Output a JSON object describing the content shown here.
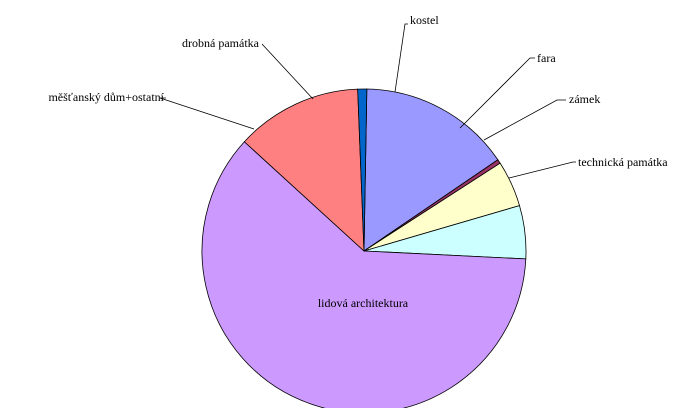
{
  "chart_data": {
    "type": "pie",
    "title": "",
    "slices": [
      {
        "label": "kostel",
        "value": 15.2,
        "color": "#9999ff"
      },
      {
        "label": "fara",
        "value": 0.4,
        "color": "#993366"
      },
      {
        "label": "zámek",
        "value": 4.6,
        "color": "#ffffcc"
      },
      {
        "label": "technická památka",
        "value": 5.3,
        "color": "#ccffff"
      },
      {
        "label": "lidová architektura",
        "value": 61.0,
        "color": "#cc99ff"
      },
      {
        "label": "měšťanský dům+ostatní",
        "value": 12.6,
        "color": "#ff8080"
      },
      {
        "label": "drobná památka",
        "value": 0.9,
        "color": "#0066cc"
      }
    ],
    "start_angle_deg": 1.0,
    "direction": "clockwise",
    "legend": "none",
    "labels": "outside-with-leader-lines"
  }
}
